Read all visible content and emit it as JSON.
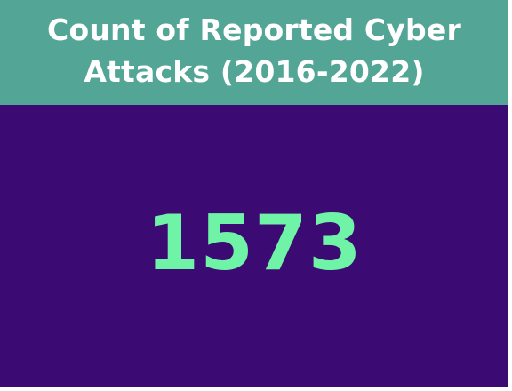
{
  "card": {
    "title": "Count of Reported Cyber Attacks (2016-2022)",
    "value": "1573"
  },
  "colors": {
    "header_background": "#53a596",
    "body_background": "#3c0a73",
    "value_color": "#6ff3a6",
    "title_color": "#ffffff"
  }
}
